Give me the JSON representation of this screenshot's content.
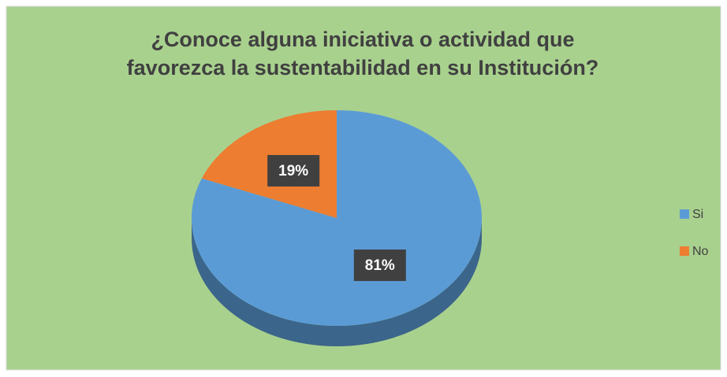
{
  "chart_data": {
    "type": "pie",
    "title": [
      "¿Conoce alguna iniciativa o actividad que",
      "favorezca la sustentabilidad en su Institución?"
    ],
    "categories": [
      "Si",
      "No"
    ],
    "values": [
      81,
      19
    ],
    "value_labels": [
      "81%",
      "19%"
    ],
    "colors": [
      "#5b9bd5",
      "#ed7d31"
    ],
    "legend": "right"
  }
}
